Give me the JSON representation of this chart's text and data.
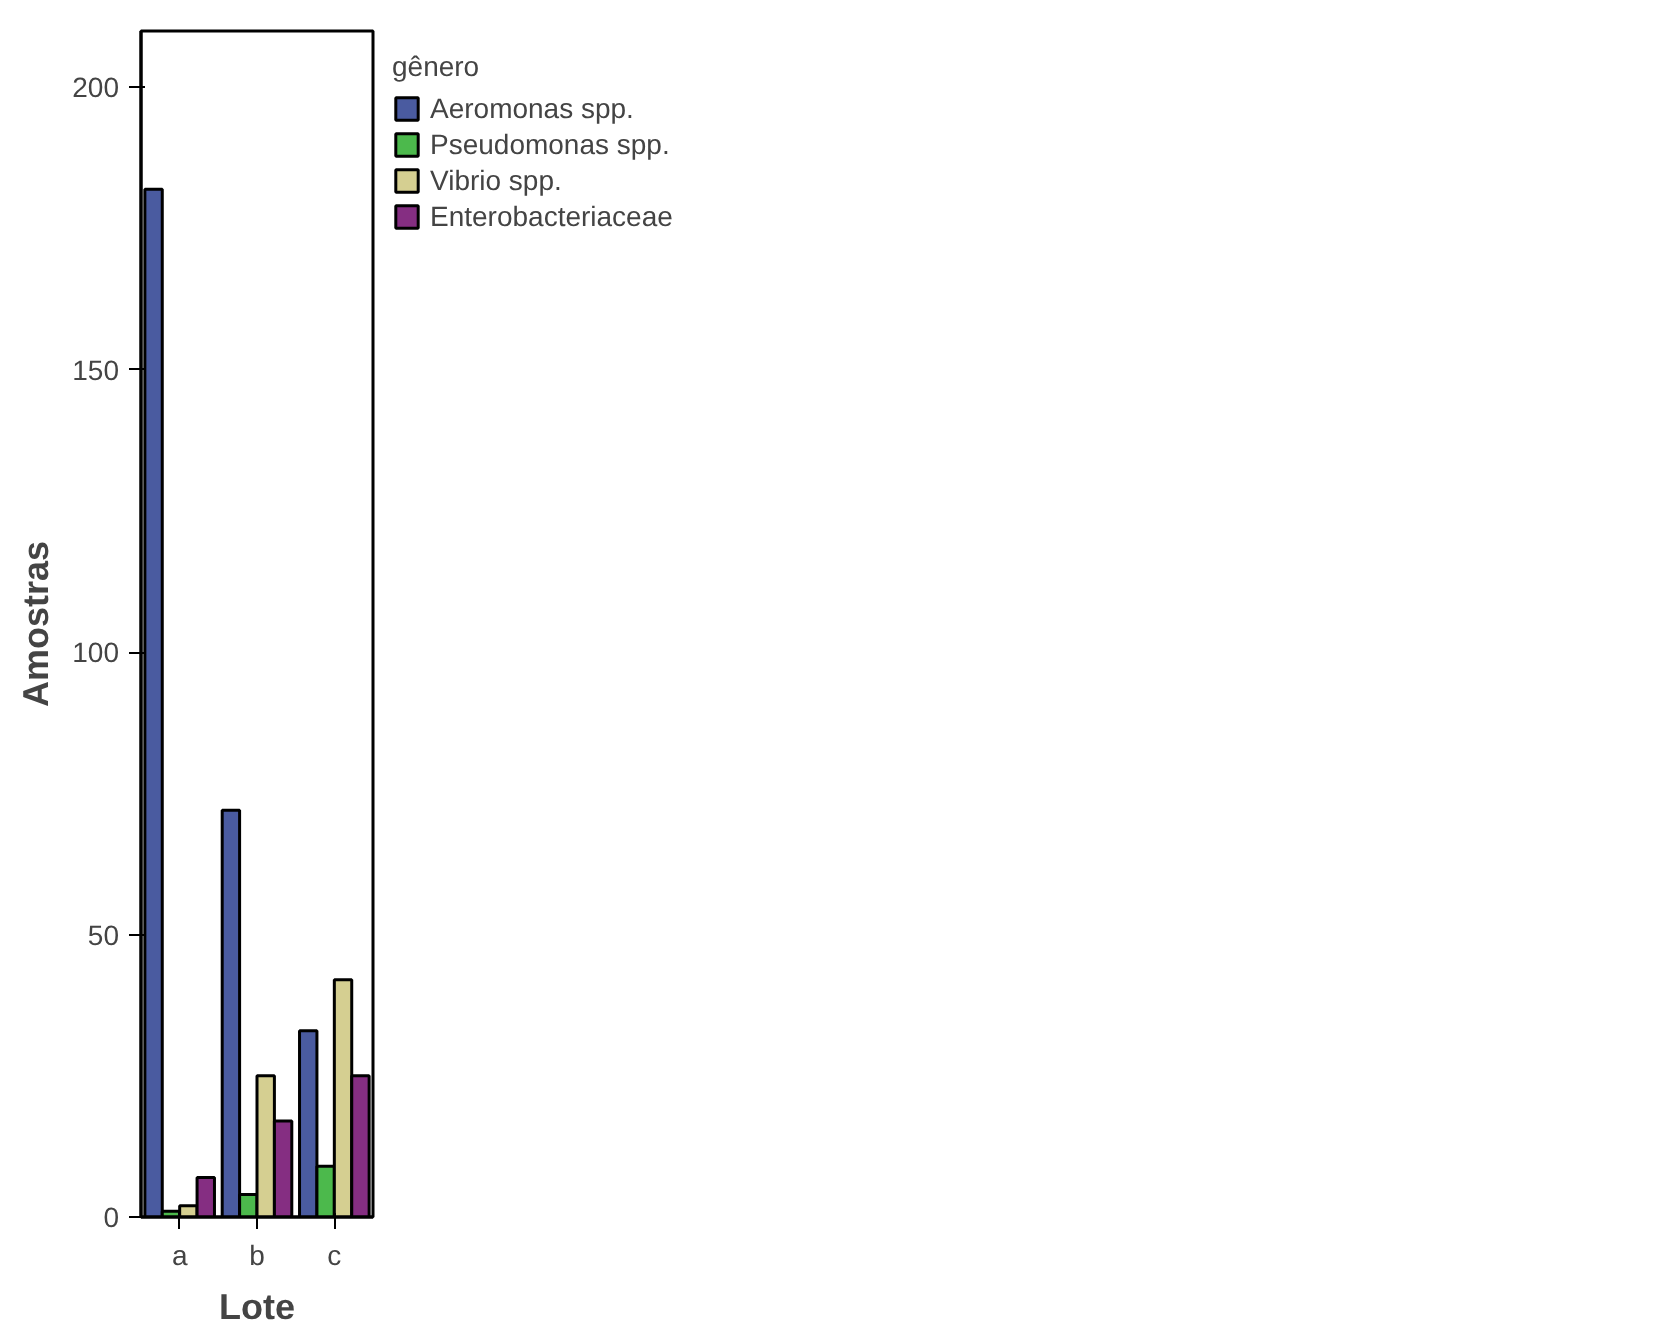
{
  "chart_data": {
    "type": "bar",
    "xlabel": "Lote",
    "ylabel": "Amostras",
    "legend_title": "gênero",
    "categories": [
      "a",
      "b",
      "c"
    ],
    "series": [
      {
        "name": "Aeromonas spp.",
        "color": "#4a5ba0",
        "values": [
          182,
          72,
          33
        ]
      },
      {
        "name": "Pseudomonas spp.",
        "color": "#4cb94c",
        "values": [
          1,
          4,
          9
        ]
      },
      {
        "name": "Vibrio spp.",
        "color": "#d5cf91",
        "values": [
          2,
          25,
          42
        ]
      },
      {
        "name": "Enterobacteriaceae",
        "color": "#852e82",
        "values": [
          7,
          17,
          25
        ]
      }
    ],
    "ylim": [
      0,
      210
    ],
    "yticks": [
      0,
      50,
      100,
      150,
      200
    ],
    "grid": false,
    "legend": "top right"
  }
}
